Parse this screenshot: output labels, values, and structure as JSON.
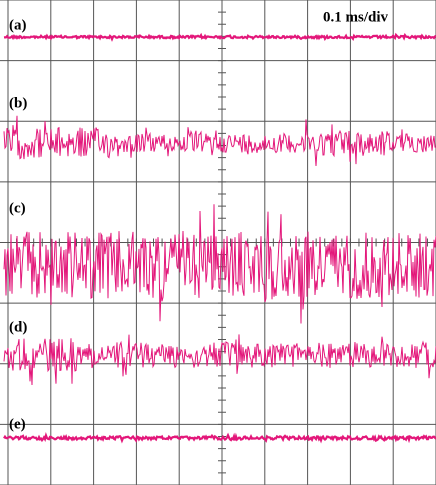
{
  "trace_labels": [
    "(a)",
    "(b)",
    "(c)",
    "(d)",
    "(e)"
  ],
  "timebase": "0.1 ms/div"
}
